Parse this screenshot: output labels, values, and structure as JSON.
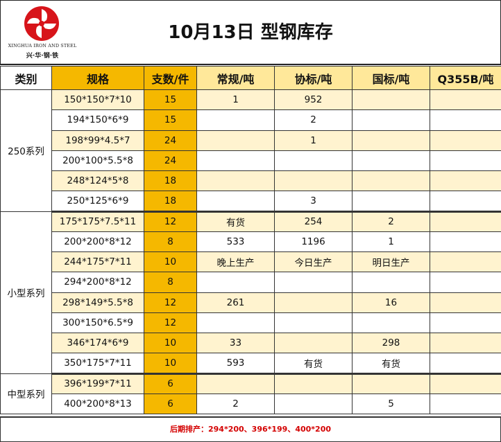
{
  "brand": {
    "name_en": "XINGHUA IRON AND STEEL",
    "name_cn": "兴·华·钢·铁"
  },
  "title": "10月13日 型钢库存",
  "columns": [
    "类别",
    "规格",
    "支数/件",
    "常规/吨",
    "协标/吨",
    "国标/吨",
    "Q355B/吨"
  ],
  "groups": [
    {
      "category": "250系列",
      "rows": [
        {
          "spec": "150*150*7*10",
          "qty": "15",
          "regular": "1",
          "assoc": "952",
          "national": "",
          "q355b": ""
        },
        {
          "spec": "194*150*6*9",
          "qty": "15",
          "regular": "",
          "assoc": "2",
          "national": "",
          "q355b": ""
        },
        {
          "spec": "198*99*4.5*7",
          "qty": "24",
          "regular": "",
          "assoc": "1",
          "national": "",
          "q355b": ""
        },
        {
          "spec": "200*100*5.5*8",
          "qty": "24",
          "regular": "",
          "assoc": "",
          "national": "",
          "q355b": ""
        },
        {
          "spec": "248*124*5*8",
          "qty": "18",
          "regular": "",
          "assoc": "",
          "national": "",
          "q355b": ""
        },
        {
          "spec": "250*125*6*9",
          "qty": "18",
          "regular": "",
          "assoc": "3",
          "national": "",
          "q355b": ""
        }
      ]
    },
    {
      "category": "小型系列",
      "rows": [
        {
          "spec": "175*175*7.5*11",
          "qty": "12",
          "regular": "有货",
          "assoc": "254",
          "national": "2",
          "q355b": ""
        },
        {
          "spec": "200*200*8*12",
          "qty": "8",
          "regular": "533",
          "assoc": "1196",
          "national": "1",
          "q355b": ""
        },
        {
          "spec": "244*175*7*11",
          "qty": "10",
          "regular": "晚上生产",
          "assoc": "今日生产",
          "national": "明日生产",
          "q355b": "",
          "highlight": true
        },
        {
          "spec": "294*200*8*12",
          "qty": "8",
          "regular": "",
          "assoc": "",
          "national": "",
          "q355b": ""
        },
        {
          "spec": "298*149*5.5*8",
          "qty": "12",
          "regular": "261",
          "assoc": "",
          "national": "16",
          "q355b": ""
        },
        {
          "spec": "300*150*6.5*9",
          "qty": "12",
          "regular": "",
          "assoc": "",
          "national": "",
          "q355b": ""
        },
        {
          "spec": "346*174*6*9",
          "qty": "10",
          "regular": "33",
          "assoc": "",
          "national": "298",
          "q355b": ""
        },
        {
          "spec": "350*175*7*11",
          "qty": "10",
          "regular": "593",
          "assoc": "有货",
          "national": "有货",
          "q355b": ""
        }
      ]
    },
    {
      "category": "中型系列",
      "rows": [
        {
          "spec": "396*199*7*11",
          "qty": "6",
          "regular": "",
          "assoc": "",
          "national": "",
          "q355b": ""
        },
        {
          "spec": "400*200*8*13",
          "qty": "6",
          "regular": "2",
          "assoc": "",
          "national": "5",
          "q355b": ""
        }
      ]
    }
  ],
  "footer_note": "后期排产：294*200、396*199、400*200",
  "colors": {
    "accent_gold": "#f5b800",
    "header_light": "#ffe89a",
    "row_alt": "#fff3cf",
    "alert_red": "#d40000"
  }
}
